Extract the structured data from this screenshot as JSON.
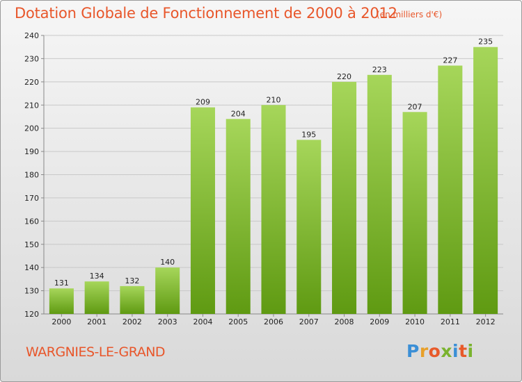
{
  "title": "Dotation Globale de Fonctionnement de 2000 à 2012",
  "subtitle": "(en milliers d'€)",
  "city": "WARGNIES-LE-GRAND",
  "logo": {
    "text": "Proxiti",
    "letter_colors": [
      "#3b8fd6",
      "#e8a02a",
      "#e85a2a",
      "#7ab32e",
      "#3b8fd6",
      "#e85a2a",
      "#7ab32e"
    ]
  },
  "colors": {
    "title": "#e8562a",
    "bar_light": "#a6d65a",
    "bar_dark": "#5f9a12",
    "grid": "#c8c8c8",
    "axis": "#888888"
  },
  "chart_data": {
    "type": "bar",
    "categories": [
      "2000",
      "2001",
      "2002",
      "2003",
      "2004",
      "2005",
      "2006",
      "2007",
      "2008",
      "2009",
      "2010",
      "2011",
      "2012"
    ],
    "values": [
      131,
      134,
      132,
      140,
      209,
      204,
      210,
      195,
      220,
      223,
      207,
      227,
      235
    ],
    "ylim": [
      120,
      240
    ],
    "yticks": [
      120,
      130,
      140,
      150,
      160,
      170,
      180,
      190,
      200,
      210,
      220,
      230,
      240
    ],
    "grid": true,
    "xlabel": "",
    "ylabel": ""
  }
}
